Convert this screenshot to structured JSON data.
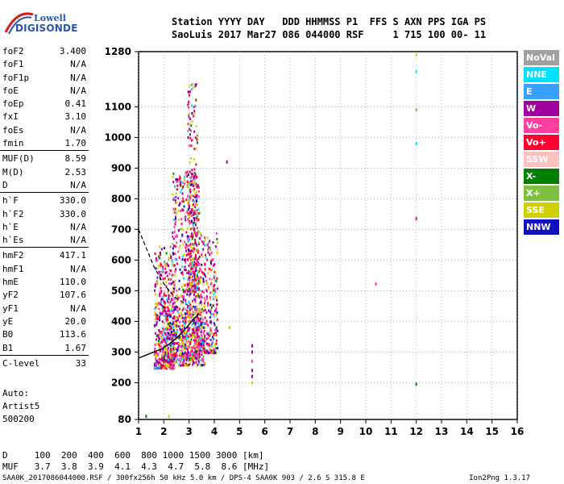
{
  "logo": {
    "top": "Lowell",
    "bottom": "DIGISONDE"
  },
  "header": {
    "columns": "Station YYYY DAY   DDD HHMMSS P1  FFS S AXN PPS IGA PS",
    "values": "SaoLuis 2017 Mar27 086 044000 RSF     1 715 100 00- 11"
  },
  "params": [
    {
      "label": "foF2",
      "value": "3.400"
    },
    {
      "label": "foF1",
      "value": "N/A"
    },
    {
      "label": "foF1p",
      "value": "N/A"
    },
    {
      "label": "foE",
      "value": "N/A"
    },
    {
      "label": "foEp",
      "value": "0.41"
    },
    {
      "label": "fxI",
      "value": "3.10"
    },
    {
      "label": "foEs",
      "value": "N/A"
    },
    {
      "label": "fmin",
      "value": "1.70"
    },
    {
      "label": "MUF(D)",
      "value": "8.59"
    },
    {
      "label": "M(D)",
      "value": "2.53"
    },
    {
      "label": "D",
      "value": "N/A"
    },
    {
      "label": "h`F",
      "value": "330.0"
    },
    {
      "label": "h`F2",
      "value": "330.0"
    },
    {
      "label": "h`E",
      "value": "N/A"
    },
    {
      "label": "h`Es",
      "value": "N/A"
    },
    {
      "label": "hmF2",
      "value": "417.1"
    },
    {
      "label": "hmF1",
      "value": "N/A"
    },
    {
      "label": "hmE",
      "value": "110.0"
    },
    {
      "label": "yF2",
      "value": "107.6"
    },
    {
      "label": "yF1",
      "value": "N/A"
    },
    {
      "label": "yE",
      "value": "20.0"
    },
    {
      "label": "B0",
      "value": "113.6"
    },
    {
      "label": "B1",
      "value": "1.67"
    },
    {
      "label": "C-level",
      "value": "33"
    }
  ],
  "auto": [
    "Auto:",
    "Artist5",
    "500200"
  ],
  "legend": [
    {
      "label": "NoVal",
      "color": "#a0a0a0",
      "text_color": "#ffffff"
    },
    {
      "label": "NNE",
      "color": "#00e0ff",
      "text_color": "#ffffff"
    },
    {
      "label": "E",
      "color": "#3aa0ff",
      "text_color": "#ffffff"
    },
    {
      "label": "W",
      "color": "#a000a0",
      "text_color": "#ffffff"
    },
    {
      "label": "Vo-",
      "color": "#ff40a0",
      "text_color": "#ffffff"
    },
    {
      "label": "Vo+",
      "color": "#ff0030",
      "text_color": "#ffffff"
    },
    {
      "label": "SSW",
      "color": "#ffc0c0",
      "text_color": "#ffffff"
    },
    {
      "label": "X-",
      "color": "#008000",
      "text_color": "#ffffff"
    },
    {
      "label": "X+",
      "color": "#80c040",
      "text_color": "#ffffff"
    },
    {
      "label": "SSE",
      "color": "#d0d000",
      "text_color": "#ffffff"
    },
    {
      "label": "NNW",
      "color": "#1010c0",
      "text_color": "#ffffff"
    }
  ],
  "muf_table": {
    "d_line": "D     100  200  400  600  800 1000 1500 3000 [km]",
    "muf_line": "MUF   3.7  3.8  3.9  4.1  4.3  4.7  5.8  8.6 [MHz]"
  },
  "footer": {
    "left": "SAA0K_2017086044000.RSF / 300fx256h 50 kHz 5.0 km / DPS-4 SAA0K 903 / 2.6 S 315.8 E",
    "right": "Ion2Png 1.3.17"
  },
  "chart_data": {
    "type": "scatter",
    "xlim": [
      1,
      16
    ],
    "ylim": [
      80,
      1280
    ],
    "xticks": [
      "1",
      "2",
      "3",
      "4",
      "5",
      "6",
      "7",
      "8",
      "9",
      "10",
      "11",
      "12",
      "13",
      "14",
      "15",
      "16"
    ],
    "yticks": [
      "80",
      "200",
      "300",
      "400",
      "500",
      "600",
      "700",
      "800",
      "900",
      "1000",
      "1100",
      "1280"
    ],
    "grid": true,
    "legend_position": "right",
    "trace": {
      "color": "#000000",
      "dashed_x": [
        1.0,
        1.3,
        1.6,
        1.9,
        2.2,
        2.5,
        2.8,
        3.0
      ],
      "dashed_y": [
        700,
        640,
        580,
        535,
        500,
        475,
        460,
        450
      ],
      "solid_x": [
        1.0,
        1.3,
        1.6,
        1.9,
        2.2,
        2.5,
        2.8,
        3.0,
        3.2,
        3.4
      ],
      "solid_y": [
        280,
        290,
        300,
        310,
        325,
        345,
        370,
        390,
        410,
        425
      ]
    },
    "clusters": [
      {
        "xmin": 1.6,
        "xmax": 2.4,
        "ymin": 250,
        "ymax": 650,
        "n": 420
      },
      {
        "xmin": 2.3,
        "xmax": 3.4,
        "ymin": 280,
        "ymax": 900,
        "n": 650
      },
      {
        "xmin": 2.9,
        "xmax": 3.3,
        "ymin": 500,
        "ymax": 1180,
        "n": 260
      },
      {
        "xmin": 3.2,
        "xmax": 4.1,
        "ymin": 300,
        "ymax": 700,
        "n": 380
      },
      {
        "xmin": 1.9,
        "xmax": 3.6,
        "ymin": 260,
        "ymax": 450,
        "n": 320
      }
    ],
    "isolated_points": [
      {
        "x": 5.5,
        "y": 320,
        "c": "#a000a0"
      },
      {
        "x": 5.5,
        "y": 300,
        "c": "#a000a0"
      },
      {
        "x": 5.5,
        "y": 270,
        "c": "#ff40a0"
      },
      {
        "x": 5.5,
        "y": 240,
        "c": "#a000a0"
      },
      {
        "x": 5.5,
        "y": 220,
        "c": "#a000a0"
      },
      {
        "x": 5.5,
        "y": 200,
        "c": "#d0d000"
      },
      {
        "x": 10.4,
        "y": 522,
        "c": "#ff40a0"
      },
      {
        "x": 12.0,
        "y": 195,
        "c": "#008000"
      },
      {
        "x": 12.0,
        "y": 735,
        "c": "#ff0030"
      },
      {
        "x": 12.0,
        "y": 980,
        "c": "#00e0ff"
      },
      {
        "x": 12.0,
        "y": 1090,
        "c": "#80c040"
      },
      {
        "x": 12.0,
        "y": 1215,
        "c": "#00e0ff"
      },
      {
        "x": 12.0,
        "y": 1270,
        "c": "#d0d000"
      },
      {
        "x": 4.5,
        "y": 920,
        "c": "#a000a0"
      },
      {
        "x": 4.6,
        "y": 380,
        "c": "#d0d000"
      },
      {
        "x": 1.3,
        "y": 90,
        "c": "#008000"
      },
      {
        "x": 2.2,
        "y": 90,
        "c": "#d0d000"
      }
    ]
  }
}
